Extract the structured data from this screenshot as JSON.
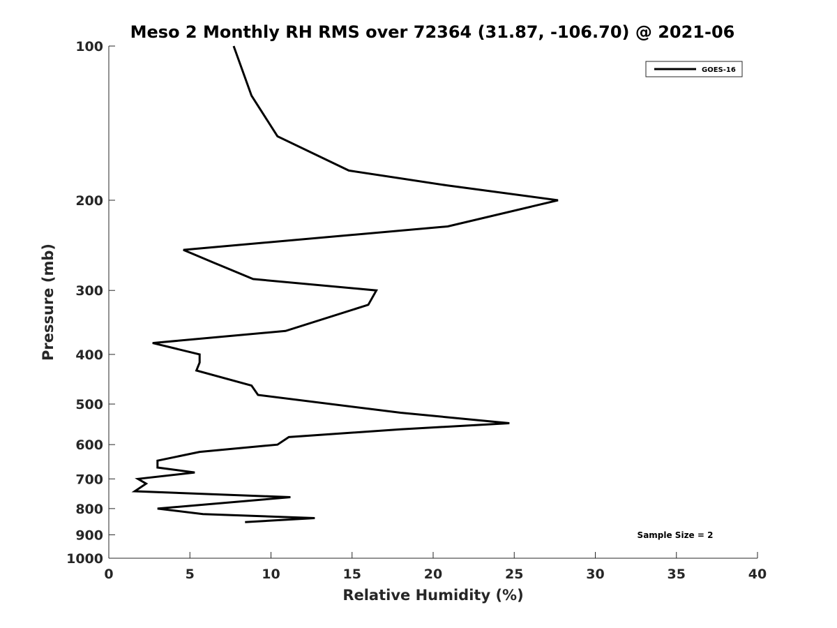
{
  "chart_data": {
    "type": "line",
    "title": "Meso 2 Monthly RH RMS over 72364 (31.87, -106.70) @ 2021-06",
    "xlabel": "Relative Humidity (%)",
    "ylabel": "Pressure (mb)",
    "xlim": [
      0,
      40
    ],
    "ylim": [
      1000,
      100
    ],
    "y_scale": "log",
    "x_ticks": [
      0,
      5,
      10,
      15,
      20,
      25,
      30,
      35,
      40
    ],
    "y_ticks": [
      100,
      200,
      300,
      400,
      500,
      600,
      700,
      800,
      900,
      1000
    ],
    "grid": false,
    "legend_position": "top-right",
    "series": [
      {
        "name": "GOES-16",
        "color": "#000000",
        "points": [
          {
            "rh": 7.7,
            "p": 100
          },
          {
            "rh": 8.8,
            "p": 125
          },
          {
            "rh": 10.4,
            "p": 150
          },
          {
            "rh": 14.8,
            "p": 175
          },
          {
            "rh": 20.8,
            "p": 187
          },
          {
            "rh": 27.7,
            "p": 200
          },
          {
            "rh": 20.9,
            "p": 225
          },
          {
            "rh": 4.6,
            "p": 250
          },
          {
            "rh": 6.5,
            "p": 265
          },
          {
            "rh": 8.9,
            "p": 285
          },
          {
            "rh": 16.5,
            "p": 300
          },
          {
            "rh": 16.0,
            "p": 320
          },
          {
            "rh": 10.9,
            "p": 360
          },
          {
            "rh": 2.7,
            "p": 380
          },
          {
            "rh": 5.6,
            "p": 400
          },
          {
            "rh": 5.6,
            "p": 415
          },
          {
            "rh": 5.4,
            "p": 430
          },
          {
            "rh": 8.8,
            "p": 460
          },
          {
            "rh": 9.2,
            "p": 480
          },
          {
            "rh": 18.0,
            "p": 520
          },
          {
            "rh": 24.7,
            "p": 545
          },
          {
            "rh": 18.0,
            "p": 560
          },
          {
            "rh": 11.1,
            "p": 580
          },
          {
            "rh": 10.4,
            "p": 600
          },
          {
            "rh": 5.6,
            "p": 620
          },
          {
            "rh": 3.0,
            "p": 645
          },
          {
            "rh": 3.0,
            "p": 665
          },
          {
            "rh": 5.3,
            "p": 680
          },
          {
            "rh": 1.8,
            "p": 700
          },
          {
            "rh": 2.3,
            "p": 715
          },
          {
            "rh": 1.6,
            "p": 740
          },
          {
            "rh": 11.2,
            "p": 760
          },
          {
            "rh": 3.0,
            "p": 800
          },
          {
            "rh": 5.8,
            "p": 820
          },
          {
            "rh": 12.7,
            "p": 835
          },
          {
            "rh": 8.4,
            "p": 850
          }
        ]
      }
    ],
    "annotations": [
      {
        "text": "Sample Size = 2",
        "position": "bottom-right"
      }
    ]
  }
}
